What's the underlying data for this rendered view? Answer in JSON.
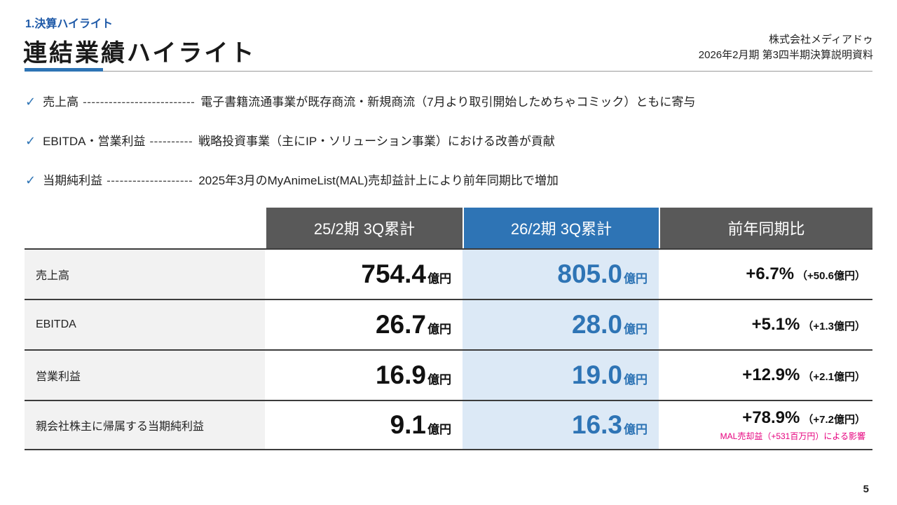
{
  "header": {
    "section_label": "1.決算ハイライト",
    "title": "連結業績ハイライト",
    "company": "株式会社メディアドゥ",
    "subtitle": "2026年2月期 第3四半期決算説明資料"
  },
  "icons": {
    "check": "✓"
  },
  "bullets": [
    {
      "label": "売上高",
      "dashes": "--------------------------",
      "text": "電子書籍流通事業が既存商流・新規商流（7月より取引開始しためちゃコミック）ともに寄与"
    },
    {
      "label": "EBITDA・営業利益",
      "dashes": "----------",
      "text": "戦略投資事業（主にIP・ソリューション事業）における改善が貢献"
    },
    {
      "label": "当期純利益",
      "dashes": "--------------------",
      "text": "2025年3月のMyAnimeList(MAL)売却益計上により前年同期比で増加"
    }
  ],
  "table": {
    "columns": [
      "25/2期 3Q累計",
      "26/2期 3Q累計",
      "前年同期比"
    ],
    "unit": "億円",
    "rows": [
      {
        "label": "売上高",
        "prev": "754.4",
        "curr": "805.0",
        "yoy": "+6.7%",
        "yoy_abs": "（+50.6億円）",
        "note": ""
      },
      {
        "label": "EBITDA",
        "prev": "26.7",
        "curr": "28.0",
        "yoy": "+5.1%",
        "yoy_abs": "（+1.3億円）",
        "note": ""
      },
      {
        "label": "営業利益",
        "prev": "16.9",
        "curr": "19.0",
        "yoy": "+12.9%",
        "yoy_abs": "（+2.1億円）",
        "note": ""
      },
      {
        "label": "親会社株主に帰属する当期純利益",
        "prev": "9.1",
        "curr": "16.3",
        "yoy": "+78.9%",
        "yoy_abs": "（+7.2億円）",
        "note": "MAL売却益（+531百万円）による影響"
      }
    ]
  },
  "footer": {
    "page_number": "5"
  },
  "colors": {
    "accent_blue": "#2e74b5",
    "header_gray": "#595959",
    "highlight_column_bg": "#dce9f6",
    "label_column_bg": "#f2f2f2",
    "note_pink": "#e6007e"
  }
}
